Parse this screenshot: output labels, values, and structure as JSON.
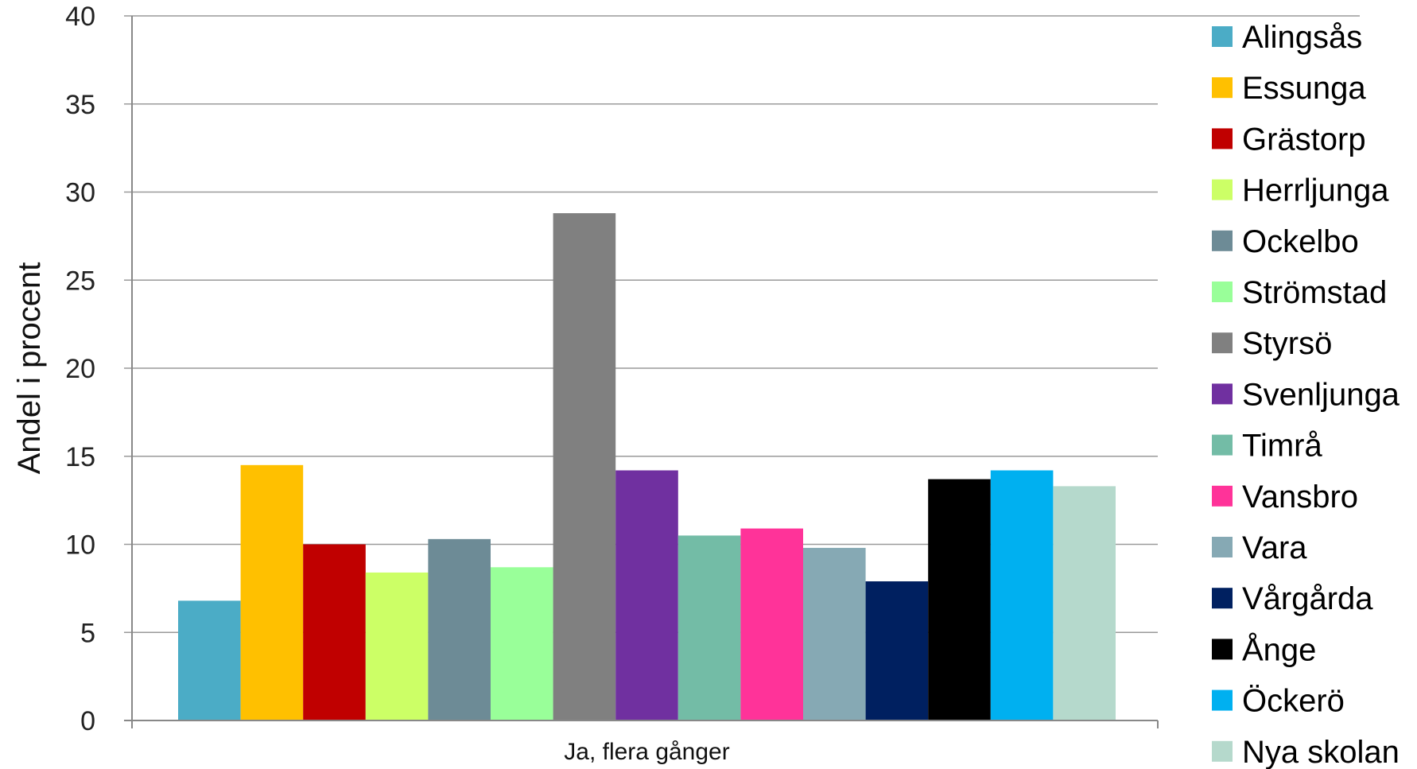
{
  "chart_data": {
    "type": "bar",
    "ylabel": "Andel i procent",
    "xlabel": "",
    "ylim": [
      0,
      40
    ],
    "yticks": [
      0,
      5,
      10,
      15,
      20,
      25,
      30,
      35,
      40
    ],
    "grid": true,
    "legend_position": "right",
    "categories": [
      "Ja, flera gånger"
    ],
    "series": [
      {
        "name": "Alingsås",
        "color": "#4bacc6",
        "values": [
          6.8
        ]
      },
      {
        "name": "Essunga",
        "color": "#ffc000",
        "values": [
          14.5
        ]
      },
      {
        "name": "Grästorp",
        "color": "#c00000",
        "values": [
          10.0
        ]
      },
      {
        "name": "Herrljunga",
        "color": "#ccff66",
        "values": [
          8.4
        ]
      },
      {
        "name": "Ockelbo",
        "color": "#6d8b96",
        "values": [
          10.3
        ]
      },
      {
        "name": "Strömstad",
        "color": "#99ff99",
        "values": [
          8.7
        ]
      },
      {
        "name": "Styrsö",
        "color": "#808080",
        "values": [
          28.8
        ]
      },
      {
        "name": "Svenljunga",
        "color": "#7030a0",
        "values": [
          14.2
        ]
      },
      {
        "name": "Timrå",
        "color": "#73bca6",
        "values": [
          10.5
        ]
      },
      {
        "name": "Vansbro",
        "color": "#ff3399",
        "values": [
          10.9
        ]
      },
      {
        "name": "Vara",
        "color": "#86a9b4",
        "values": [
          9.8
        ]
      },
      {
        "name": "Vårgårda",
        "color": "#002060",
        "values": [
          7.9
        ]
      },
      {
        "name": "Ånge",
        "color": "#000000",
        "values": [
          13.7
        ]
      },
      {
        "name": "Öckerö",
        "color": "#00b0f0",
        "values": [
          14.2
        ]
      },
      {
        "name": "Nya skolan",
        "color": "#b5d9cc",
        "values": [
          13.3
        ]
      }
    ]
  }
}
